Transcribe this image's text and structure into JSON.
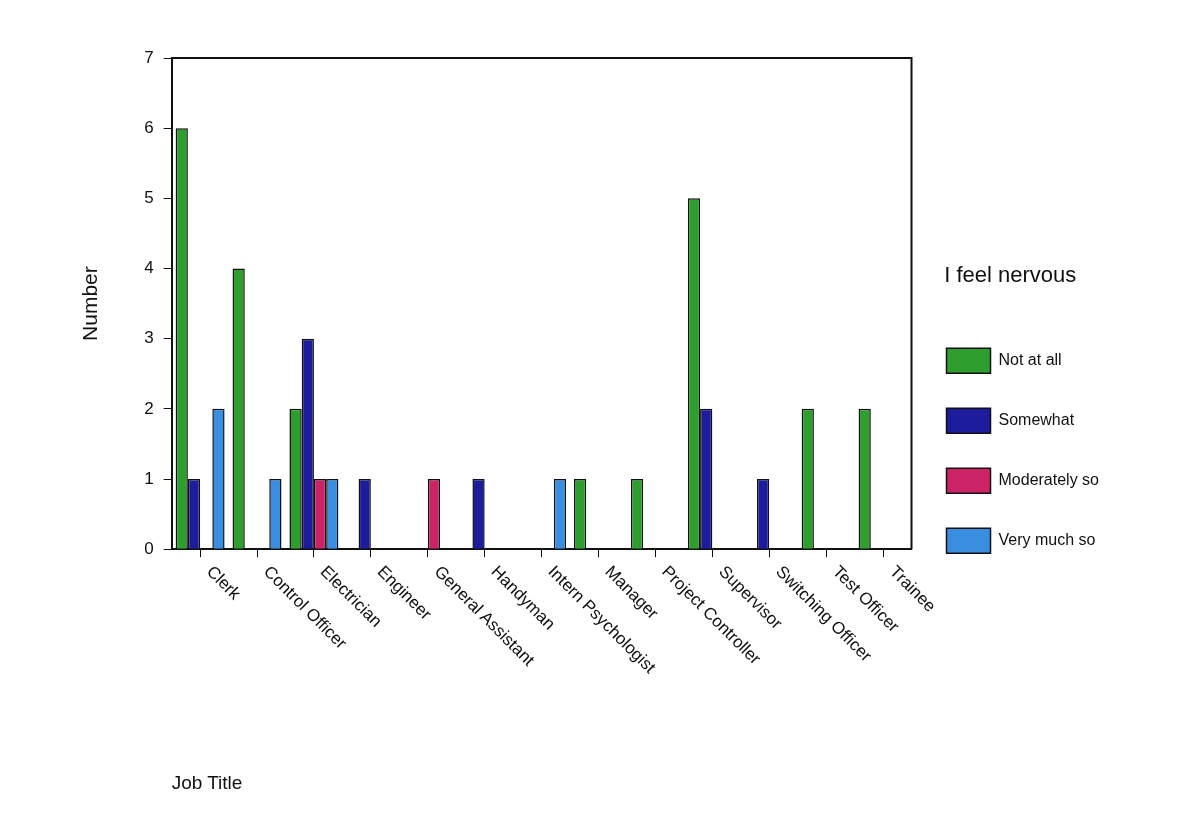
{
  "chart_data": {
    "type": "bar",
    "categories": [
      "Clerk",
      "Control Officer",
      "Electrician",
      "Engineer",
      "General Assistant",
      "Handyman",
      "Intern Psychologist",
      "Manager",
      "Project Controller",
      "Supervisor",
      "Switching Officer",
      "Test Officer",
      "Trainee"
    ],
    "series": [
      {
        "name": "Not at all",
        "color": "#2e9e2e",
        "values": [
          6,
          4,
          2,
          0,
          0,
          0,
          0,
          1,
          1,
          5,
          0,
          2,
          2
        ]
      },
      {
        "name": "Somewhat",
        "color": "#1c1c9c",
        "values": [
          1,
          0,
          3,
          1,
          0,
          1,
          0,
          0,
          0,
          2,
          1,
          0,
          0
        ]
      },
      {
        "name": "Moderately so",
        "color": "#cc2266",
        "values": [
          0,
          0,
          1,
          0,
          1,
          0,
          0,
          0,
          0,
          0,
          0,
          0,
          0
        ]
      },
      {
        "name": "Very much so",
        "color": "#3a8ee0",
        "values": [
          2,
          1,
          1,
          0,
          0,
          0,
          1,
          0,
          0,
          0,
          0,
          0,
          0
        ]
      }
    ],
    "xlabel": "Job Title",
    "ylabel": "Number",
    "legend_title": "I feel nervous",
    "ylim": [
      0,
      7
    ],
    "yticks": [
      0,
      1,
      2,
      3,
      4,
      5,
      6,
      7
    ],
    "grid": false,
    "legend": "right"
  }
}
